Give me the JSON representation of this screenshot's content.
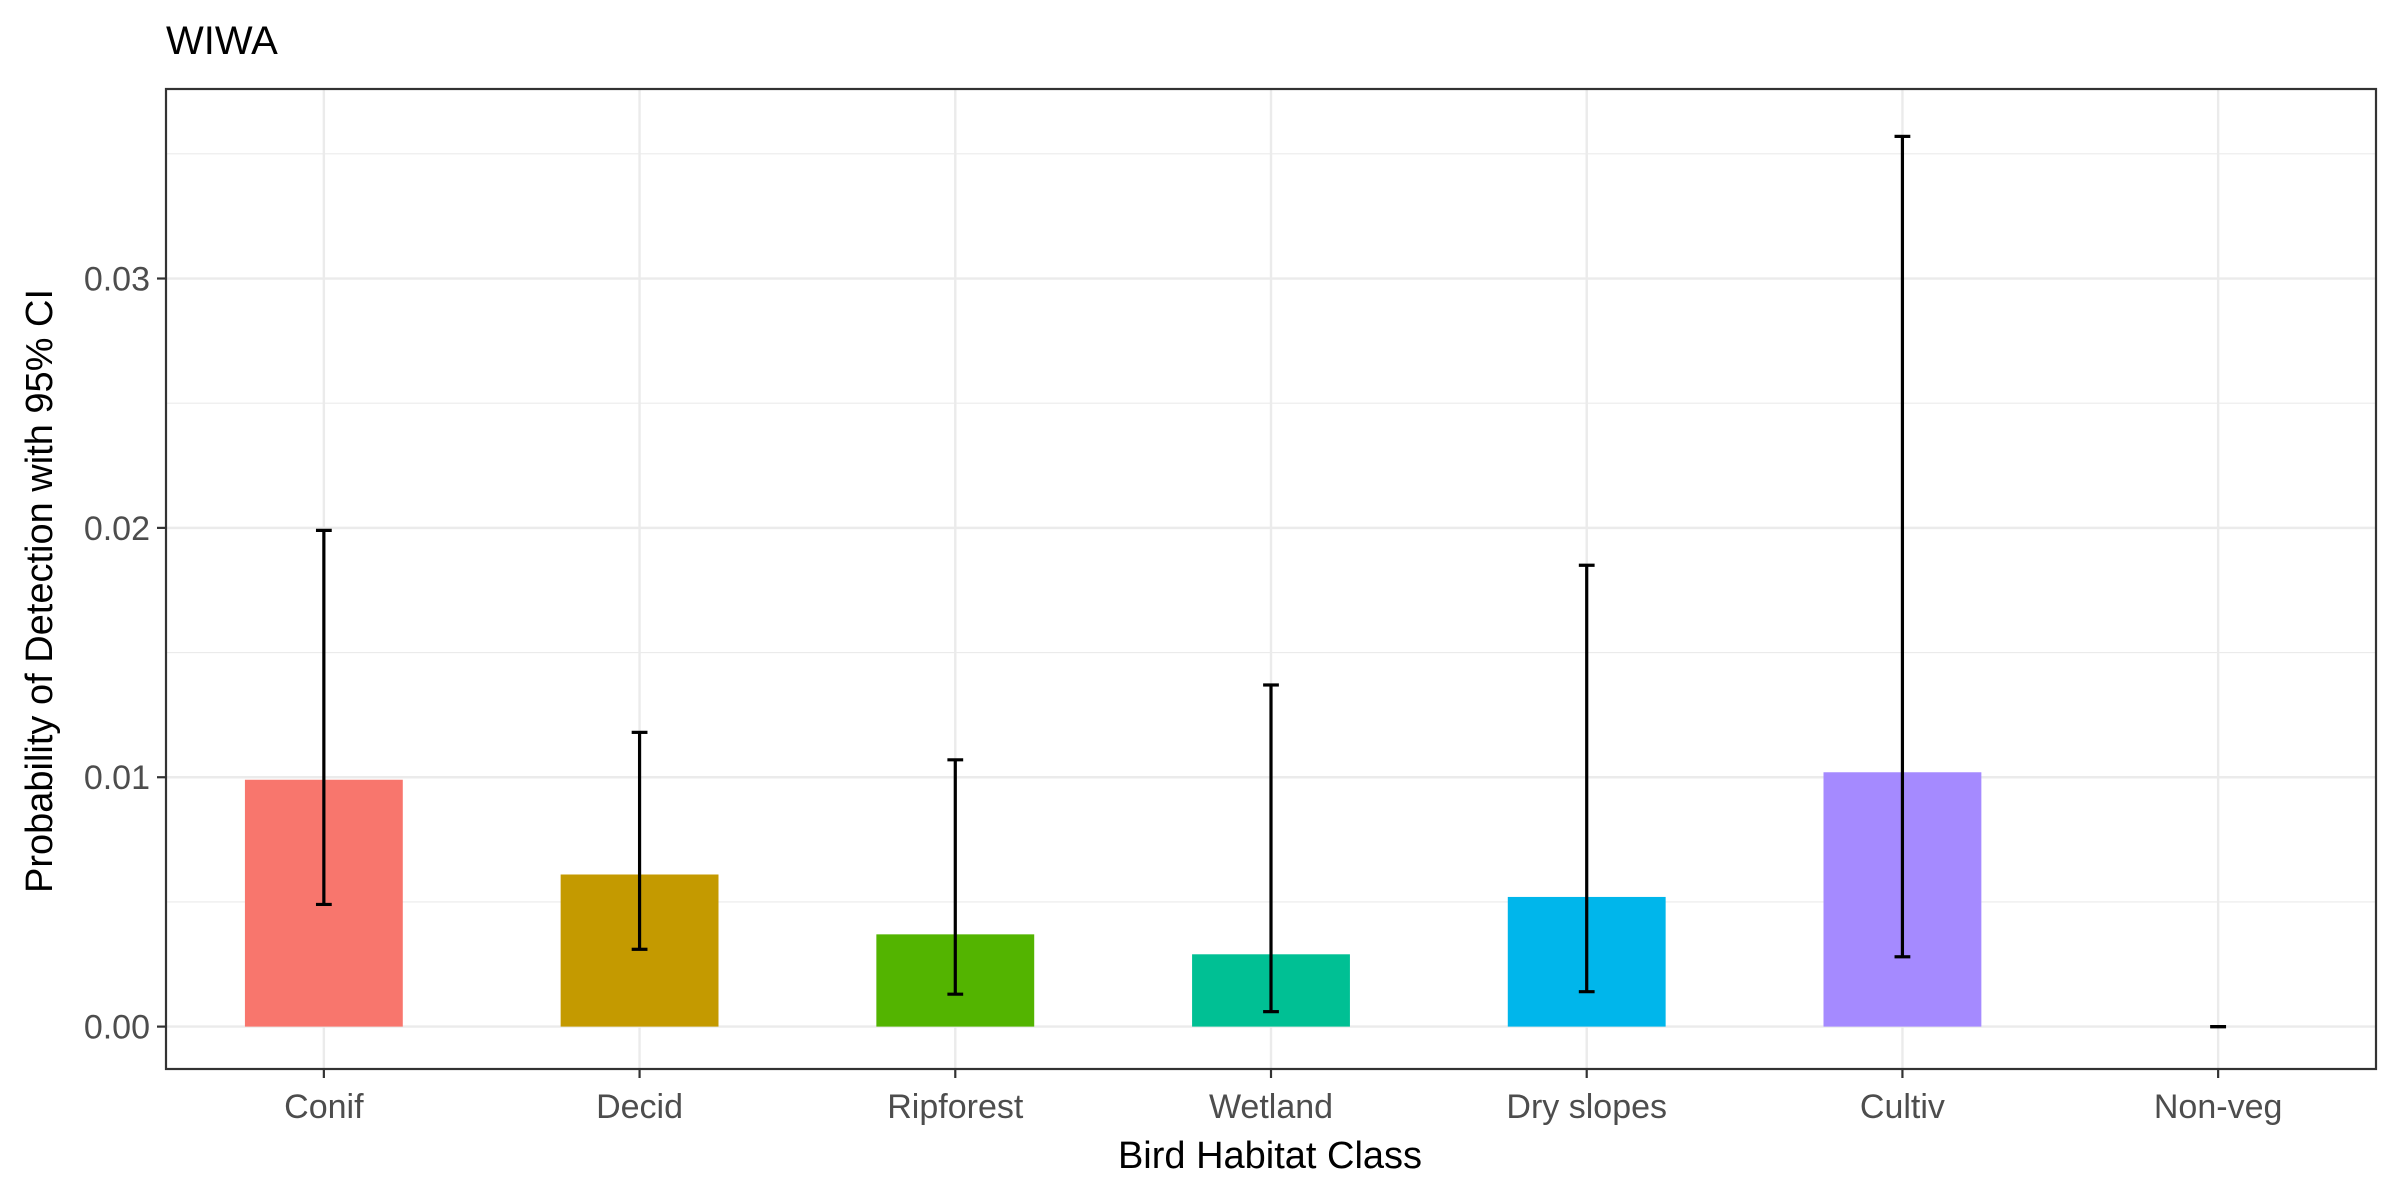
{
  "chart_data": {
    "type": "bar",
    "title": "WIWA",
    "xlabel": "Bird Habitat Class",
    "ylabel": "Probability of Detection with 95% CI",
    "categories": [
      "Conif",
      "Decid",
      "Ripforest",
      "Wetland",
      "Dry slopes",
      "Cultiv",
      "Non-veg"
    ],
    "values": [
      0.0099,
      0.0061,
      0.0037,
      0.0029,
      0.0052,
      0.0102,
      0.0
    ],
    "ci_lower": [
      0.0049,
      0.0031,
      0.0013,
      0.0006,
      0.0014,
      0.0028,
      0.0
    ],
    "ci_upper": [
      0.0199,
      0.0118,
      0.0107,
      0.0137,
      0.0185,
      0.0357,
      0.0
    ],
    "colors": [
      "#F8766D",
      "#C49A00",
      "#53B400",
      "#00C094",
      "#00B6EB",
      "#A58AFF",
      "#FB61D7"
    ],
    "yticks": [
      0.0,
      0.01,
      0.02,
      0.03
    ],
    "ytick_labels": [
      "0.00",
      "0.01",
      "0.02",
      "0.03"
    ],
    "ylim": [
      -0.0017,
      0.0376
    ],
    "grid": true,
    "legend": "none"
  }
}
